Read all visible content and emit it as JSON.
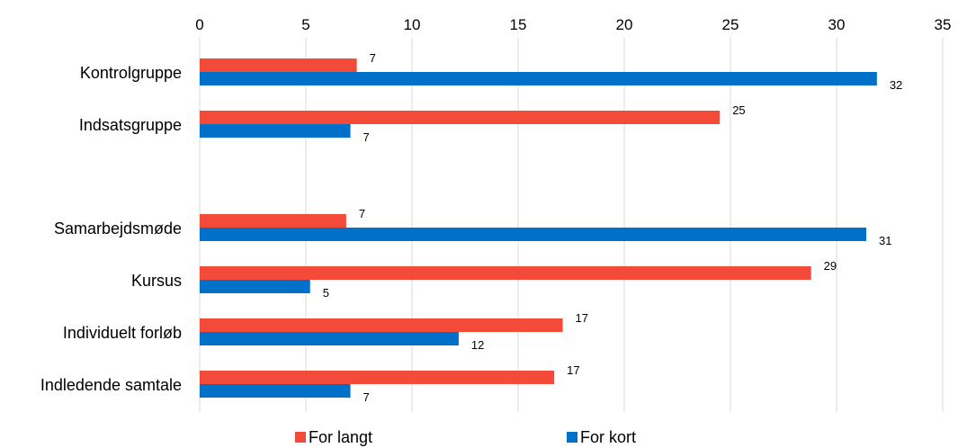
{
  "chart_data": {
    "type": "bar",
    "orientation": "horizontal",
    "title": "",
    "xlabel": "",
    "ylabel": "",
    "xlim": [
      0,
      35
    ],
    "x_ticks": [
      "0",
      "5",
      "10",
      "15",
      "20",
      "25",
      "30",
      "35"
    ],
    "x_axis_position": "top",
    "grid": "vertical",
    "legend_position": "bottom",
    "categories": [
      "Kontrolgruppe",
      "Indsatsgruppe",
      "",
      "Samarbejdsmøde",
      "Kursus",
      "Individuelt forløb",
      "Indledende samtale"
    ],
    "series": [
      {
        "name": "For langt",
        "color": "#F44A3A",
        "values": [
          7.4,
          24.5,
          null,
          6.9,
          28.8,
          17.1,
          16.7
        ],
        "labels": [
          "7",
          "25",
          "",
          "7",
          "29",
          "17",
          "17"
        ]
      },
      {
        "name": "For kort",
        "color": "#0070C8",
        "values": [
          31.9,
          7.1,
          null,
          31.4,
          5.2,
          12.2,
          7.1
        ],
        "labels": [
          "32",
          "7",
          "",
          "31",
          "5",
          "12",
          "7"
        ]
      }
    ]
  }
}
